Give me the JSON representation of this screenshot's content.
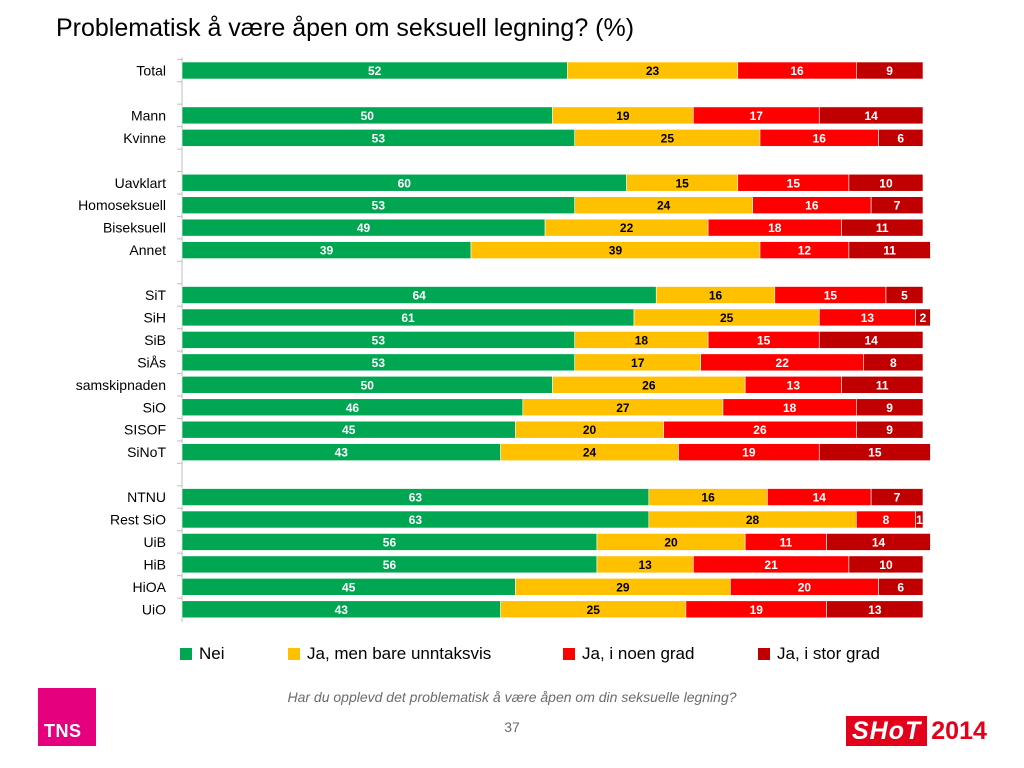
{
  "title": "Problematisk å være åpen om seksuell legning? (%)",
  "footnote": "Har du opplevd det problematisk å være åpen om din seksuelle legning?",
  "page_number": "37",
  "logos": {
    "tns": "TNS",
    "shot": "SHoT",
    "shot_year": "2014"
  },
  "colors": {
    "nei": "#00a651",
    "unntaksvis": "#ffc000",
    "noen_grad": "#ff0000",
    "stor_grad": "#c00000"
  },
  "chart_data": {
    "type": "bar",
    "orientation": "horizontal",
    "stacked": true,
    "title": "Problematisk å være åpen om seksuell legning? (%)",
    "xlim": [
      0,
      100
    ],
    "legend": "bottom",
    "categories": [
      "Total",
      "",
      "Mann",
      "Kvinne",
      "",
      "Uavklart",
      "Homoseksuell",
      "Biseksuell",
      "Annet",
      "",
      "SiT",
      "SiH",
      "SiB",
      "SiÅs",
      "samskipnaden",
      "SiO",
      "SISOF",
      "SiNoT",
      "",
      "NTNU",
      "Rest SiO",
      "UiB",
      "HiB",
      "HiOA",
      "UiO"
    ],
    "series": [
      {
        "name": "Nei",
        "color": "#00a651",
        "label_color": "#ffffff",
        "values": [
          52,
          null,
          50,
          53,
          null,
          60,
          53,
          49,
          39,
          null,
          64,
          61,
          53,
          53,
          50,
          46,
          45,
          43,
          null,
          63,
          63,
          56,
          56,
          45,
          43
        ]
      },
      {
        "name": "Ja, men bare unntaksvis",
        "color": "#ffc000",
        "label_color": "#000000",
        "values": [
          23,
          null,
          19,
          25,
          null,
          15,
          24,
          22,
          39,
          null,
          16,
          25,
          18,
          17,
          26,
          27,
          20,
          24,
          null,
          16,
          28,
          20,
          13,
          29,
          25
        ]
      },
      {
        "name": "Ja, i noen grad",
        "color": "#ff0000",
        "label_color": "#ffffff",
        "values": [
          16,
          null,
          17,
          16,
          null,
          15,
          16,
          18,
          12,
          null,
          15,
          13,
          15,
          22,
          13,
          18,
          26,
          19,
          null,
          14,
          8,
          11,
          21,
          20,
          19
        ]
      },
      {
        "name": "Ja, i stor grad",
        "color": "#c00000",
        "label_color": "#ffffff",
        "values": [
          9,
          null,
          14,
          6,
          null,
          10,
          7,
          11,
          11,
          null,
          5,
          2,
          14,
          8,
          11,
          9,
          9,
          15,
          null,
          7,
          1,
          14,
          10,
          6,
          13
        ]
      }
    ]
  }
}
